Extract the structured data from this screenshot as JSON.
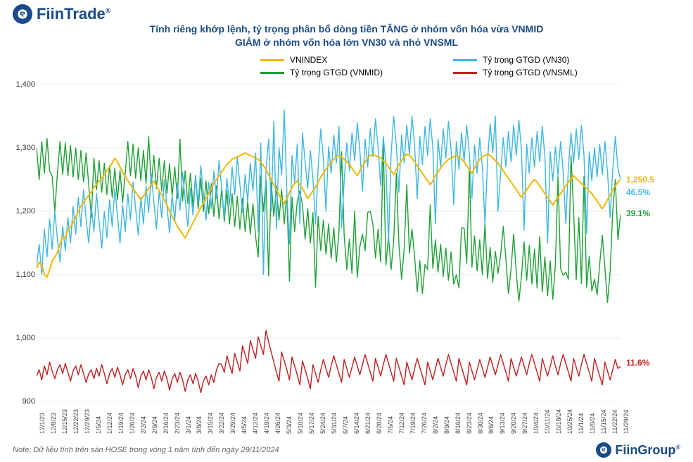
{
  "brand_top": "FiinTrade",
  "brand_top_mark": "®",
  "brand_bottom": "FiinGroup",
  "brand_bottom_mark": "®",
  "title_line1": "Tính riêng khớp lệnh, tỷ trọng phân bổ dòng tiền TĂNG ở nhóm vốn hóa vừa VNMID",
  "title_line2": "GIẢM ở nhóm vốn hóa lớn VN30 và nhỏ VNSML",
  "note": "Note: Dữ liệu tính trên sàn HOSE trong vòng 1 năm tính đến ngày 29/11/2024",
  "legend": {
    "s1": "VNINDEX",
    "s2": "Tỷ trọng GTGD (VN30)",
    "s3": "Tỷ trọng GTGD (VNMID)",
    "s4": "Tỷ trọng GTGD (VNSML)"
  },
  "colors": {
    "vnindex": "#f2b705",
    "vn30": "#3db6e8",
    "vnmid": "#1fa035",
    "vnsml": "#c41e1e",
    "title": "#1a4a8a",
    "grid": "#e8e8e8",
    "background": "#ffffff"
  },
  "chart": {
    "type": "line",
    "ylim": [
      900,
      1400
    ],
    "ytick_step": 100,
    "yticks": [
      900,
      1000,
      1100,
      1200,
      1300,
      1400
    ],
    "line_width": 1.4,
    "label_fontsize": 11,
    "xlabels": [
      "12/1/23",
      "12/8/23",
      "12/15/23",
      "12/22/23",
      "12/29/23",
      "1/5/24",
      "1/12/24",
      "1/19/24",
      "1/26/24",
      "2/2/24",
      "2/9/24",
      "2/16/24",
      "2/23/24",
      "3/1/24",
      "3/8/24",
      "3/15/24",
      "3/22/24",
      "3/29/24",
      "4/5/24",
      "4/12/24",
      "4/19/24",
      "4/26/24",
      "5/3/24",
      "5/10/24",
      "5/17/24",
      "5/24/24",
      "5/31/24",
      "6/7/24",
      "6/14/24",
      "6/21/24",
      "6/28/24",
      "7/5/24",
      "7/12/24",
      "7/19/24",
      "7/26/24",
      "8/2/24",
      "8/9/24",
      "8/16/24",
      "8/23/24",
      "8/30/24",
      "9/6/24",
      "9/13/24",
      "9/20/24",
      "9/27/24",
      "10/4/24",
      "10/11/24",
      "10/18/24",
      "10/25/24",
      "11/1/24",
      "11/8/24",
      "11/15/24",
      "11/22/24",
      "11/29/24"
    ],
    "end_labels": {
      "vnindex": "1,250.5",
      "vn30": "46.5%",
      "vnmid": "39.1%",
      "vnsml": "11.6%"
    },
    "series": {
      "vnindex": [
        1110,
        1120,
        1115,
        1100,
        1096,
        1108,
        1122,
        1128,
        1135,
        1148,
        1160,
        1158,
        1170,
        1175,
        1182,
        1190,
        1200,
        1208,
        1214,
        1220,
        1225,
        1230,
        1238,
        1242,
        1248,
        1252,
        1258,
        1264,
        1270,
        1276,
        1284,
        1278,
        1270,
        1262,
        1255,
        1248,
        1242,
        1236,
        1230,
        1224,
        1218,
        1224,
        1230,
        1236,
        1242,
        1248,
        1240,
        1232,
        1226,
        1218,
        1210,
        1200,
        1192,
        1184,
        1176,
        1170,
        1164,
        1158,
        1166,
        1174,
        1182,
        1190,
        1198,
        1206,
        1212,
        1220,
        1228,
        1236,
        1244,
        1250,
        1256,
        1262,
        1268,
        1274,
        1278,
        1282,
        1284,
        1286,
        1288,
        1290,
        1292,
        1290,
        1288,
        1286,
        1284,
        1282,
        1278,
        1272,
        1266,
        1258,
        1250,
        1242,
        1234,
        1226,
        1218,
        1212,
        1220,
        1230,
        1238,
        1244,
        1248,
        1242,
        1236,
        1228,
        1220,
        1226,
        1232,
        1238,
        1246,
        1254,
        1260,
        1266,
        1272,
        1278,
        1282,
        1286,
        1288,
        1286,
        1282,
        1278,
        1274,
        1268,
        1262,
        1256,
        1264,
        1272,
        1278,
        1284,
        1288,
        1290,
        1288,
        1286,
        1284,
        1280,
        1276,
        1270,
        1264,
        1258,
        1266,
        1274,
        1280,
        1286,
        1290,
        1288,
        1284,
        1278,
        1272,
        1266,
        1260,
        1254,
        1248,
        1242,
        1248,
        1256,
        1262,
        1268,
        1274,
        1278,
        1282,
        1284,
        1286,
        1288,
        1286,
        1282,
        1278,
        1272,
        1266,
        1260,
        1268,
        1276,
        1282,
        1286,
        1288,
        1290,
        1288,
        1284,
        1280,
        1276,
        1270,
        1264,
        1258,
        1252,
        1246,
        1240,
        1234,
        1228,
        1222,
        1228,
        1234,
        1240,
        1246,
        1250,
        1246,
        1240,
        1234,
        1228,
        1222,
        1216,
        1210,
        1216,
        1222,
        1228,
        1234,
        1240,
        1246,
        1252,
        1256,
        1252,
        1248,
        1244,
        1240,
        1236,
        1232,
        1228,
        1222,
        1216,
        1210,
        1204,
        1210,
        1218,
        1226,
        1234,
        1240,
        1246,
        1250
      ],
      "vn30": [
        1115,
        1148,
        1100,
        1172,
        1128,
        1188,
        1140,
        1200,
        1156,
        1120,
        1176,
        1138,
        1190,
        1150,
        1208,
        1164,
        1222,
        1176,
        1234,
        1188,
        1150,
        1208,
        1168,
        1228,
        1184,
        1142,
        1200,
        1158,
        1218,
        1176,
        1236,
        1194,
        1150,
        1210,
        1168,
        1228,
        1186,
        1246,
        1204,
        1162,
        1222,
        1180,
        1240,
        1198,
        1260,
        1214,
        1172,
        1232,
        1190,
        1250,
        1208,
        1166,
        1226,
        1184,
        1244,
        1202,
        1262,
        1218,
        1176,
        1236,
        1194,
        1254,
        1212,
        1272,
        1228,
        1186,
        1246,
        1204,
        1264,
        1220,
        1280,
        1236,
        1192,
        1252,
        1210,
        1270,
        1226,
        1286,
        1242,
        1198,
        1258,
        1216,
        1276,
        1232,
        1292,
        1168,
        1308,
        1100,
        1266,
        1314,
        1200,
        1342,
        1172,
        1300,
        1258,
        1360,
        1230,
        1148,
        1288,
        1246,
        1306,
        1180,
        1324,
        1278,
        1236,
        1296,
        1252,
        1180,
        1270,
        1330,
        1284,
        1200,
        1302,
        1260,
        1320,
        1276,
        1334,
        1174,
        1248,
        1308,
        1264,
        1324,
        1280,
        1340,
        1296,
        1232,
        1314,
        1270,
        1330,
        1286,
        1346,
        1300,
        1240,
        1318,
        1274,
        1150,
        1290,
        1350,
        1304,
        1230,
        1320,
        1276,
        1336,
        1290,
        1350,
        1304,
        1220,
        1318,
        1274,
        1334,
        1288,
        1346,
        1300,
        1180,
        1314,
        1270,
        1330,
        1284,
        1342,
        1296,
        1210,
        1310,
        1266,
        1324,
        1278,
        1336,
        1290,
        1220,
        1304,
        1260,
        1316,
        1270,
        1180,
        1280,
        1338,
        1292,
        1350,
        1200,
        1260,
        1316,
        1270,
        1326,
        1278,
        1336,
        1288,
        1344,
        1296,
        1170,
        1306,
        1260,
        1316,
        1270,
        1326,
        1278,
        1334,
        1286,
        1150,
        1294,
        1248,
        1302,
        1256,
        1310,
        1262,
        1180,
        1270,
        1324,
        1276,
        1330,
        1282,
        1336,
        1288,
        1165,
        1294,
        1248,
        1300,
        1254,
        1306,
        1258,
        1310,
        1262,
        1190,
        1266,
        1318,
        1268,
        1250
      ],
      "vnmid": [
        1300,
        1250,
        1310,
        1260,
        1315,
        1264,
        1255,
        1200,
        1260,
        1310,
        1258,
        1308,
        1256,
        1304,
        1254,
        1300,
        1250,
        1296,
        1246,
        1292,
        1242,
        1190,
        1284,
        1234,
        1280,
        1230,
        1276,
        1226,
        1272,
        1222,
        1268,
        1218,
        1264,
        1214,
        1260,
        1310,
        1256,
        1306,
        1252,
        1300,
        1248,
        1296,
        1244,
        1318,
        1240,
        1288,
        1236,
        1284,
        1232,
        1280,
        1228,
        1275,
        1224,
        1270,
        1220,
        1314,
        1216,
        1264,
        1212,
        1260,
        1208,
        1256,
        1204,
        1252,
        1200,
        1248,
        1196,
        1244,
        1192,
        1240,
        1188,
        1236,
        1184,
        1232,
        1180,
        1228,
        1176,
        1224,
        1172,
        1220,
        1168,
        1216,
        1164,
        1212,
        1160,
        1128,
        1256,
        1200,
        1250,
        1098,
        1246,
        1192,
        1240,
        1186,
        1234,
        1180,
        1228,
        1090,
        1222,
        1168,
        1216,
        1232,
        1210,
        1156,
        1204,
        1150,
        1198,
        1080,
        1192,
        1138,
        1186,
        1132,
        1180,
        1126,
        1174,
        1120,
        1168,
        1294,
        1162,
        1108,
        1156,
        1102,
        1200,
        1096,
        1144,
        1164,
        1138,
        1198,
        1200,
        1180,
        1126,
        1172,
        1120,
        1310,
        1115,
        1160,
        1108,
        1154,
        1260,
        1148,
        1093,
        1141,
        1242,
        1134,
        1172,
        1128,
        1073,
        1122,
        1070,
        1116,
        1108,
        1210,
        1110,
        1155,
        1104,
        1148,
        1097,
        1142,
        1091,
        1136,
        1085,
        1100,
        1079,
        1174,
        1173,
        1118,
        1267,
        1112,
        1161,
        1106,
        1155,
        1100,
        1180,
        1094,
        1143,
        1088,
        1137,
        1102,
        1131,
        1176,
        1125,
        1070,
        1109,
        1164,
        1103,
        1058,
        1097,
        1152,
        1091,
        1146,
        1085,
        1140,
        1079,
        1160,
        1073,
        1128,
        1067,
        1122,
        1061,
        1116,
        1255,
        1110,
        1099,
        1104,
        1093,
        1288,
        1200,
        1092,
        1190,
        1086,
        1255,
        1080,
        1129,
        1074,
        1093,
        1068,
        1117,
        1162,
        1111,
        1056,
        1105,
        1200,
        1250,
        1155,
        1195
      ],
      "vnsml": [
        940,
        950,
        934,
        956,
        942,
        962,
        948,
        936,
        950,
        958,
        944,
        960,
        946,
        932,
        948,
        956,
        942,
        958,
        944,
        930,
        944,
        950,
        936,
        952,
        940,
        958,
        944,
        928,
        944,
        952,
        938,
        954,
        942,
        926,
        942,
        950,
        936,
        952,
        940,
        922,
        940,
        948,
        934,
        950,
        938,
        920,
        938,
        946,
        932,
        948,
        936,
        918,
        936,
        944,
        930,
        946,
        934,
        916,
        934,
        942,
        928,
        944,
        932,
        914,
        932,
        940,
        926,
        942,
        930,
        950,
        960,
        958,
        946,
        972,
        958,
        944,
        976,
        962,
        948,
        988,
        974,
        960,
        996,
        982,
        968,
        1002,
        988,
        974,
        1012,
        994,
        978,
        962,
        946,
        932,
        978,
        964,
        950,
        934,
        970,
        956,
        942,
        926,
        964,
        950,
        936,
        920,
        958,
        944,
        930,
        950,
        966,
        952,
        938,
        956,
        972,
        958,
        944,
        930,
        966,
        952,
        938,
        954,
        970,
        956,
        942,
        958,
        974,
        960,
        946,
        932,
        968,
        954,
        940,
        958,
        974,
        960,
        946,
        932,
        968,
        954,
        940,
        926,
        962,
        948,
        934,
        952,
        968,
        954,
        940,
        926,
        962,
        948,
        934,
        952,
        968,
        954,
        940,
        958,
        974,
        960,
        946,
        932,
        968,
        954,
        940,
        926,
        962,
        948,
        934,
        950,
        966,
        952,
        938,
        954,
        970,
        956,
        942,
        958,
        974,
        960,
        946,
        932,
        968,
        954,
        940,
        955,
        970,
        956,
        942,
        960,
        974,
        960,
        946,
        932,
        968,
        954,
        940,
        955,
        972,
        956,
        942,
        960,
        974,
        960,
        946,
        932,
        968,
        954,
        940,
        958,
        974,
        960,
        946,
        932,
        968,
        954,
        940,
        926,
        962,
        948,
        934,
        950,
        966,
        952,
        955
      ]
    }
  }
}
